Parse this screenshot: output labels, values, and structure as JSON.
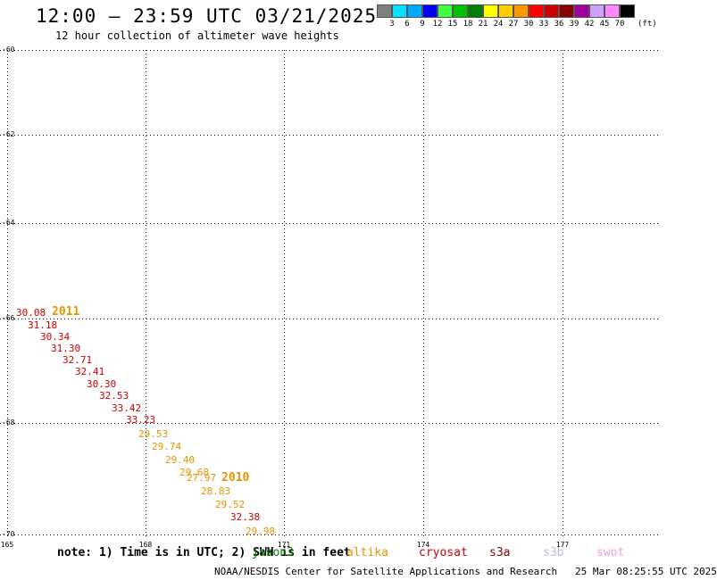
{
  "header": {
    "title": "12:00 – 23:59 UTC 03/21/2025",
    "subtitle": "12 hour collection of altimeter wave heights"
  },
  "color_scale": {
    "colors": [
      "#808080",
      "#00e0ff",
      "#00a8ff",
      "#0000ff",
      "#40ff40",
      "#00c000",
      "#008000",
      "#ffff00",
      "#ffcc00",
      "#ff9900",
      "#ff0000",
      "#cc0000",
      "#880000",
      "#a000a0",
      "#d0a0ff",
      "#ff88ff",
      "#000000"
    ],
    "labels": [
      "3",
      "6",
      "9",
      "12",
      "15",
      "18",
      "21",
      "24",
      "27",
      "30",
      "33",
      "36",
      "39",
      "42",
      "45",
      "70"
    ],
    "unit": "(ft)"
  },
  "map": {
    "lat_labels": [
      "-60",
      "-62",
      "-64",
      "-66",
      "-68",
      "-70"
    ],
    "lon_labels": [
      "165",
      "168",
      "171",
      "174",
      "177"
    ],
    "track_labels": [
      {
        "text": "30.08",
        "color": "#cc0000"
      },
      {
        "text": "31.18",
        "color": "#cc0000"
      },
      {
        "text": "30.34",
        "color": "#cc0000"
      },
      {
        "text": "31.30",
        "color": "#cc0000"
      },
      {
        "text": "32.71",
        "color": "#cc0000"
      },
      {
        "text": "32.41",
        "color": "#cc0000"
      },
      {
        "text": "30.30",
        "color": "#cc0000"
      },
      {
        "text": "32.53",
        "color": "#cc0000"
      },
      {
        "text": "33.42",
        "color": "#cc0000"
      },
      {
        "text": "33.23",
        "color": "#cc0000"
      },
      {
        "text": "29.53",
        "color": "#e69500"
      },
      {
        "text": "29.74",
        "color": "#e69500"
      },
      {
        "text": "29.40",
        "color": "#e69500"
      },
      {
        "text": "29.68",
        "color": "#e69500"
      },
      {
        "text": "27.97",
        "color": "#e69500"
      },
      {
        "text": "28.83",
        "color": "#e69500"
      },
      {
        "text": "29.52",
        "color": "#e69500"
      },
      {
        "text": "32.38",
        "color": "#cc0000"
      },
      {
        "text": "29.98",
        "color": "#e69500"
      }
    ],
    "time_labels": [
      {
        "text": "2011",
        "color": "#e69500"
      },
      {
        "text": "2010",
        "color": "#e69500"
      }
    ]
  },
  "legend": {
    "note": "note: 1) Time is in UTC; 2) SWH is in feet",
    "satellites": [
      {
        "name": "jason3",
        "color": "#008000"
      },
      {
        "name": "altika",
        "color": "#e69500"
      },
      {
        "name": "cryosat",
        "color": "#cc0000"
      },
      {
        "name": "s3a",
        "color": "#880000"
      },
      {
        "name": "s3b",
        "color": "#c8b4f0"
      },
      {
        "name": "swot",
        "color": "#f0a0e0"
      }
    ]
  },
  "footer": {
    "credit": "NOAA/NESDIS Center for Satellite Applications and Research",
    "timestamp": "25 Mar 08:25:55 UTC 2025"
  }
}
